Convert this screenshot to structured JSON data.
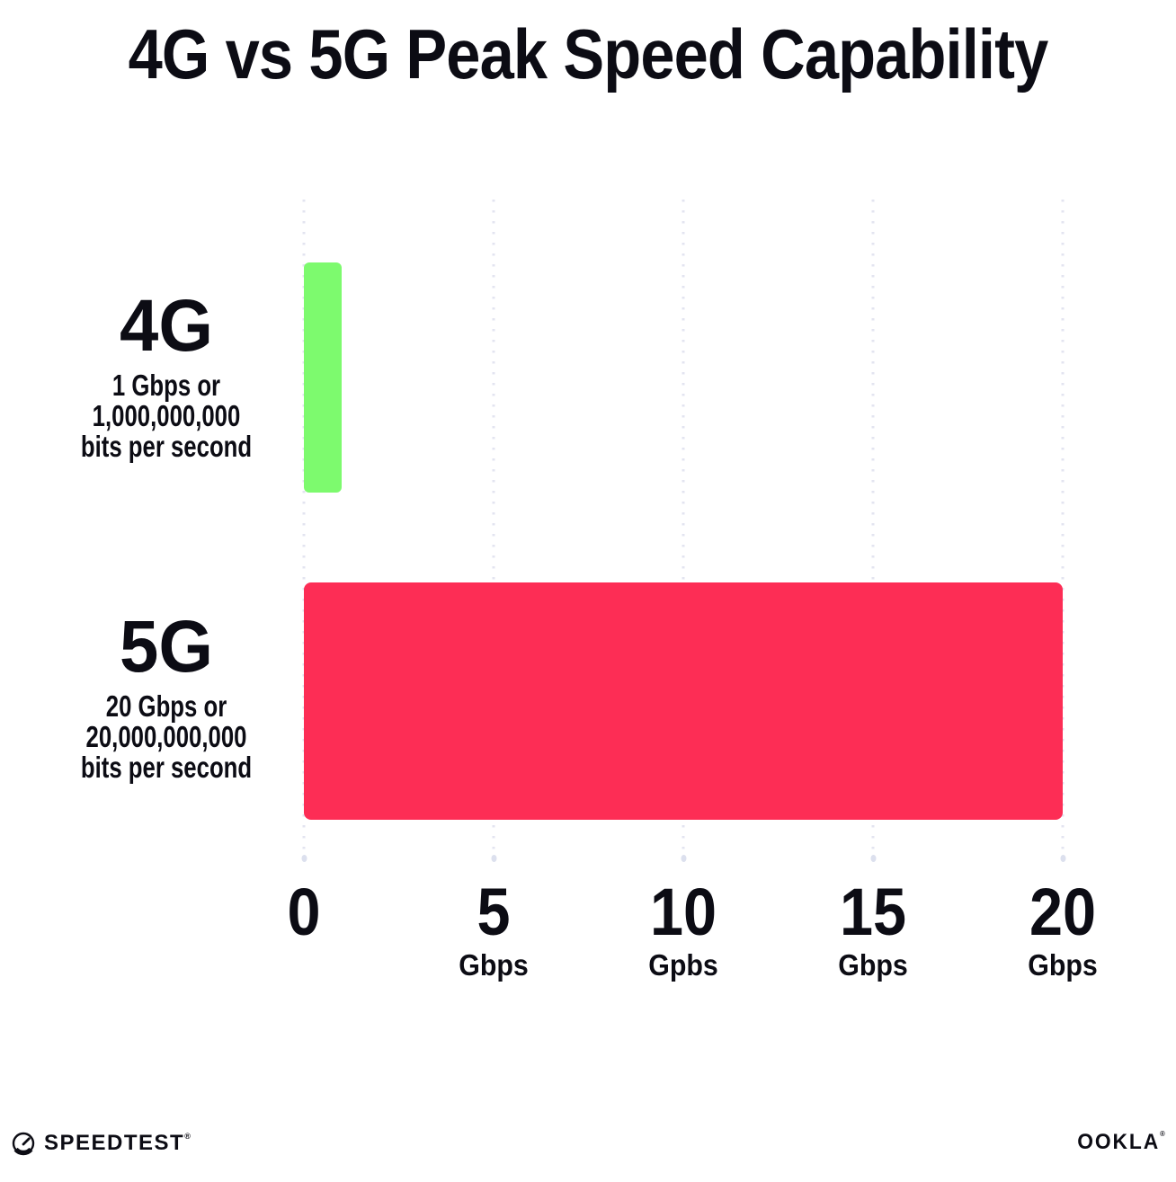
{
  "chart_data": {
    "type": "bar",
    "orientation": "horizontal",
    "title": "4G vs 5G Peak Speed Capability",
    "rows": [
      {
        "category": "4G",
        "value_gbps": 1,
        "label_lines": [
          "1 Gbps or",
          "1,000,000,000",
          "bits per second"
        ],
        "color": "#7dfa6e"
      },
      {
        "category": "5G",
        "value_gbps": 20,
        "label_lines": [
          "20 Gbps or",
          "20,000,000,000",
          "bits per second"
        ],
        "color": "#fd2d55"
      }
    ],
    "x_axis": {
      "min": 0,
      "max": 20,
      "ticks": [
        {
          "label": "0",
          "unit": ""
        },
        {
          "label": "5",
          "unit": "Gbps"
        },
        {
          "label": "10",
          "unit": "Gpbs"
        },
        {
          "label": "15",
          "unit": "Gbps"
        },
        {
          "label": "20",
          "unit": "Gbps"
        }
      ]
    },
    "grid": {
      "style": "dotted",
      "direction": "vertical",
      "color": "#e3e4f0"
    },
    "legend": "none",
    "background": "#ffffff"
  },
  "footer": {
    "speedtest_label": "SPEEDTEST",
    "speedtest_tm": "®",
    "ookla_label": "OOKLA",
    "ookla_tm": "®"
  }
}
